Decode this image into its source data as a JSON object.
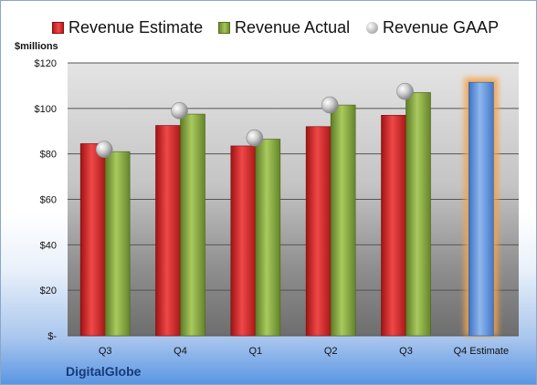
{
  "legend": {
    "estimate": "Revenue Estimate",
    "actual": "Revenue Actual",
    "gaap": "Revenue GAAP"
  },
  "unit_label": "$millions",
  "company": "DigitalGlobe",
  "colors": {
    "estimate": "#d62c2c",
    "actual": "#8cae46",
    "gaap": "#b8b8b8",
    "forecast": "#6f9fe0",
    "forecast_glow": "#f5a347"
  },
  "chart_data": {
    "type": "bar",
    "categories": [
      "Q3",
      "Q4",
      "Q1",
      "Q2",
      "Q3",
      "Q4 Estimate"
    ],
    "y_tick_labels": [
      "$-",
      "$20",
      "$40",
      "$60",
      "$80",
      "$100",
      "$120"
    ],
    "ylim": [
      0,
      120
    ],
    "ylabel": "$millions",
    "grid": true,
    "legend_position": "top",
    "series": [
      {
        "name": "Revenue Estimate",
        "values": [
          84.5,
          92.5,
          83.5,
          92,
          97,
          null
        ]
      },
      {
        "name": "Revenue Actual",
        "values": [
          81,
          97.5,
          86.5,
          101.5,
          107,
          null
        ]
      },
      {
        "name": "Revenue GAAP",
        "values": [
          82,
          99,
          87,
          101.5,
          107.5,
          null
        ],
        "marker": "circle"
      }
    ],
    "forecast": {
      "category": "Q4 Estimate",
      "value": 111.5
    }
  }
}
